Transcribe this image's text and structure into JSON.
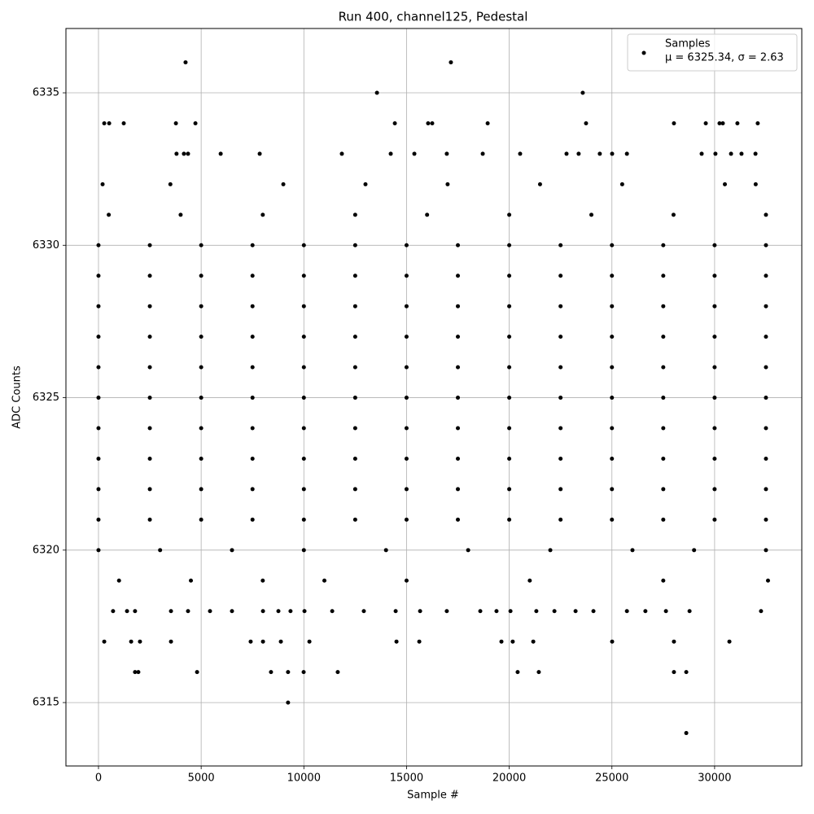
{
  "chart_data": {
    "type": "scatter",
    "title": "Run 400, channel125, Pedestal",
    "x_label": "Sample #",
    "y_label": "ADC Counts",
    "legend_name": "Samples",
    "legend_stats": "μ = 6325.34, σ = 2.63",
    "legend_position": "upper right",
    "color": "#000000",
    "grid": true,
    "xlim": [
      -1585,
      34245
    ],
    "ylim": [
      6312.92,
      6337.11
    ],
    "xticks": [
      0,
      5000,
      10000,
      15000,
      20000,
      25000,
      30000
    ],
    "yticks": [
      6315,
      6320,
      6325,
      6330,
      6335
    ],
    "x": [
      0,
      2500,
      5000,
      7500,
      10000,
      12500,
      15000,
      17500,
      20000,
      22500,
      25000,
      27500,
      30000,
      32500,
      0,
      2500,
      5000,
      7500,
      10000,
      12500,
      15000,
      17500,
      20000,
      22500,
      25000,
      27500,
      30000,
      32500,
      0,
      2500,
      5000,
      7500,
      10000,
      12500,
      15000,
      17500,
      20000,
      22500,
      25000,
      27500,
      30000,
      32500,
      0,
      2500,
      5000,
      7500,
      10000,
      12500,
      15000,
      17500,
      20000,
      22500,
      25000,
      27500,
      30000,
      32500,
      0,
      2500,
      5000,
      7500,
      10000,
      12500,
      15000,
      17500,
      20000,
      22500,
      25000,
      27500,
      30000,
      32500,
      0,
      2500,
      5000,
      7500,
      10000,
      12500,
      15000,
      17500,
      20000,
      22500,
      25000,
      27500,
      30000,
      32500,
      0,
      2500,
      5000,
      7500,
      10000,
      12500,
      15000,
      17500,
      20000,
      22500,
      25000,
      27500,
      30000,
      32500,
      0,
      2500,
      5000,
      7500,
      10000,
      12500,
      15000,
      17500,
      20000,
      22500,
      25000,
      27500,
      30000,
      32500,
      0,
      2500,
      5000,
      7500,
      10000,
      12500,
      15000,
      17500,
      20000,
      22500,
      25000,
      27500,
      30000,
      32500,
      0,
      2500,
      5000,
      7500,
      10000,
      12500,
      15000,
      17500,
      20000,
      22500,
      25000,
      27500,
      30000,
      32500,
      1000,
      4500,
      8000,
      11000,
      15000,
      21000,
      27500,
      32600,
      0,
      3000,
      6500,
      10000,
      14000,
      18000,
      22000,
      26000,
      29000,
      32500,
      500,
      4000,
      8000,
      12500,
      16000,
      20000,
      24000,
      28000,
      32500,
      200,
      3500,
      9000,
      13000,
      17000,
      21500,
      25500,
      30500,
      32000,
      4240,
      17160,
      13560,
      23580,
      280,
      520,
      1230,
      3770,
      4720,
      14430,
      16050,
      16250,
      18950,
      23740,
      28020,
      29570,
      30240,
      30400,
      31110,
      32100,
      3800,
      4160,
      4360,
      5950,
      7850,
      11850,
      14230,
      15380,
      16960,
      18710,
      20530,
      22790,
      23380,
      24410,
      25010,
      25730,
      29370,
      30040,
      30800,
      31310,
      31990,
      710,
      1390,
      1780,
      3530,
      4360,
      5430,
      6500,
      8010,
      8760,
      9350,
      10030,
      11380,
      12920,
      14470,
      15660,
      16960,
      18590,
      19380,
      20060,
      21320,
      22200,
      23230,
      24100,
      25730,
      26630,
      27630,
      28780,
      32260,
      280,
      1590,
      2020,
      3530,
      7410,
      8010,
      8880,
      10270,
      14510,
      15620,
      19620,
      20170,
      21170,
      25010,
      28020,
      30720,
      1780,
      1940,
      4800,
      8400,
      9230,
      9990,
      11650,
      20410,
      21440,
      28020,
      28620,
      9230,
      28620
    ],
    "values": [
      6321,
      6321,
      6321,
      6321,
      6321,
      6321,
      6321,
      6321,
      6321,
      6321,
      6321,
      6321,
      6321,
      6321,
      6322,
      6322,
      6322,
      6322,
      6322,
      6322,
      6322,
      6322,
      6322,
      6322,
      6322,
      6322,
      6322,
      6322,
      6323,
      6323,
      6323,
      6323,
      6323,
      6323,
      6323,
      6323,
      6323,
      6323,
      6323,
      6323,
      6323,
      6323,
      6324,
      6324,
      6324,
      6324,
      6324,
      6324,
      6324,
      6324,
      6324,
      6324,
      6324,
      6324,
      6324,
      6324,
      6325,
      6325,
      6325,
      6325,
      6325,
      6325,
      6325,
      6325,
      6325,
      6325,
      6325,
      6325,
      6325,
      6325,
      6326,
      6326,
      6326,
      6326,
      6326,
      6326,
      6326,
      6326,
      6326,
      6326,
      6326,
      6326,
      6326,
      6326,
      6327,
      6327,
      6327,
      6327,
      6327,
      6327,
      6327,
      6327,
      6327,
      6327,
      6327,
      6327,
      6327,
      6327,
      6328,
      6328,
      6328,
      6328,
      6328,
      6328,
      6328,
      6328,
      6328,
      6328,
      6328,
      6328,
      6328,
      6328,
      6329,
      6329,
      6329,
      6329,
      6329,
      6329,
      6329,
      6329,
      6329,
      6329,
      6329,
      6329,
      6329,
      6329,
      6330,
      6330,
      6330,
      6330,
      6330,
      6330,
      6330,
      6330,
      6330,
      6330,
      6330,
      6330,
      6330,
      6330,
      6319,
      6319,
      6319,
      6319,
      6319,
      6319,
      6319,
      6319,
      6320,
      6320,
      6320,
      6320,
      6320,
      6320,
      6320,
      6320,
      6320,
      6320,
      6331,
      6331,
      6331,
      6331,
      6331,
      6331,
      6331,
      6331,
      6331,
      6332,
      6332,
      6332,
      6332,
      6332,
      6332,
      6332,
      6332,
      6332,
      6336,
      6336,
      6335,
      6335,
      6334,
      6334,
      6334,
      6334,
      6334,
      6334,
      6334,
      6334,
      6334,
      6334,
      6334,
      6334,
      6334,
      6334,
      6334,
      6334,
      6333,
      6333,
      6333,
      6333,
      6333,
      6333,
      6333,
      6333,
      6333,
      6333,
      6333,
      6333,
      6333,
      6333,
      6333,
      6333,
      6333,
      6333,
      6333,
      6333,
      6333,
      6318,
      6318,
      6318,
      6318,
      6318,
      6318,
      6318,
      6318,
      6318,
      6318,
      6318,
      6318,
      6318,
      6318,
      6318,
      6318,
      6318,
      6318,
      6318,
      6318,
      6318,
      6318,
      6318,
      6318,
      6318,
      6318,
      6318,
      6318,
      6317,
      6317,
      6317,
      6317,
      6317,
      6317,
      6317,
      6317,
      6317,
      6317,
      6317,
      6317,
      6317,
      6317,
      6317,
      6317,
      6316,
      6316,
      6316,
      6316,
      6316,
      6316,
      6316,
      6316,
      6316,
      6316,
      6316,
      6315,
      6314
    ]
  }
}
